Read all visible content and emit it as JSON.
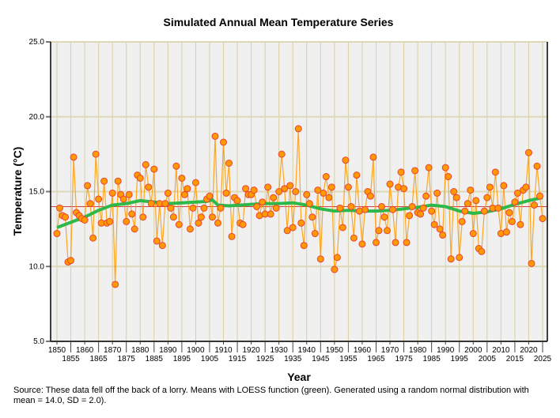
{
  "chart_data": {
    "type": "line",
    "title": "Simulated Annual Mean Temperature Series",
    "xlabel": "Year",
    "ylabel": "Temperature (°C)",
    "xlim": [
      1848,
      2027
    ],
    "ylim": [
      5,
      25
    ],
    "yticks": [
      "5.0",
      "10.0",
      "15.0",
      "20.0",
      "25.0"
    ],
    "ytick_values": [
      5,
      10,
      15,
      20,
      25
    ],
    "xticks": [
      1850,
      1855,
      1860,
      1865,
      1870,
      1875,
      1880,
      1885,
      1890,
      1895,
      1900,
      1905,
      1910,
      1915,
      1920,
      1925,
      1930,
      1935,
      1940,
      1945,
      1950,
      1955,
      1960,
      1965,
      1970,
      1975,
      1980,
      1985,
      1990,
      1995,
      2000,
      2005,
      2010,
      2015,
      2020,
      2025
    ],
    "grid": true,
    "mean": 14.0,
    "start_year": 1850,
    "series": [
      {
        "name": "Annual mean temperature",
        "color": "#ff9900",
        "marker_edge": "#e8433a",
        "values": [
          12.2,
          13.9,
          13.4,
          13.3,
          10.3,
          10.4,
          17.3,
          13.6,
          13.4,
          13.2,
          13.1,
          15.4,
          14.2,
          11.9,
          17.5,
          14.5,
          12.9,
          15.7,
          12.9,
          13.0,
          14.9,
          8.8,
          15.7,
          14.8,
          14.5,
          13.0,
          14.8,
          13.5,
          12.5,
          16.1,
          15.9,
          13.3,
          16.8,
          15.3,
          14.2,
          16.5,
          11.7,
          14.2,
          11.4,
          14.2,
          14.9,
          13.9,
          13.3,
          16.7,
          12.8,
          15.9,
          14.8,
          15.2,
          12.5,
          13.9,
          15.6,
          12.9,
          13.3,
          13.9,
          14.5,
          14.7,
          13.3,
          18.7,
          12.9,
          13.9,
          18.3,
          14.9,
          16.9,
          12.0,
          14.6,
          14.4,
          12.9,
          12.8,
          15.2,
          14.8,
          14.8,
          15.1,
          14.0,
          13.4,
          14.3,
          13.5,
          15.3,
          13.5,
          14.6,
          13.9,
          15.0,
          17.5,
          15.2,
          12.4,
          15.4,
          12.6,
          15.0,
          19.2,
          12.9,
          11.4,
          14.8,
          14.2,
          13.3,
          12.2,
          15.1,
          10.5,
          14.9,
          16.0,
          14.6,
          15.3,
          9.8,
          10.6,
          13.9,
          12.6,
          17.1,
          15.3,
          14.0,
          11.9,
          16.1,
          13.7,
          11.5,
          13.8,
          15.0,
          14.7,
          17.3,
          11.6,
          12.4,
          14.0,
          13.3,
          12.4,
          15.5,
          13.8,
          11.6,
          15.3,
          16.3,
          15.2,
          11.6,
          13.4,
          14.0,
          16.4,
          13.6,
          13.5,
          13.9,
          14.7,
          16.6,
          13.7,
          12.8,
          14.9,
          12.5,
          12.1,
          16.6,
          16.0,
          10.5,
          15.0,
          14.6,
          10.6,
          13.0,
          13.7,
          14.2,
          15.1,
          12.2,
          14.4,
          11.2,
          11.0,
          13.7,
          14.6,
          15.3,
          13.9,
          16.3,
          13.9,
          12.2,
          15.4,
          12.3,
          13.6,
          13.0,
          14.3,
          14.9,
          12.8,
          15.1,
          15.3,
          17.6,
          10.2,
          14.1,
          16.7,
          14.7,
          13.2
        ]
      },
      {
        "name": "LOESS",
        "color": "#2db84a",
        "x": [
          1850,
          1855,
          1860,
          1865,
          1870,
          1875,
          1880,
          1885,
          1890,
          1895,
          1900,
          1904,
          1906,
          1908,
          1912,
          1920,
          1925,
          1930,
          1935,
          1940,
          1945,
          1950,
          1955,
          1960,
          1965,
          1970,
          1975,
          1980,
          1985,
          1990,
          1995,
          2000,
          2005,
          2010,
          2015,
          2020,
          2025
        ],
        "values": [
          12.6,
          12.95,
          13.3,
          13.75,
          14.1,
          14.2,
          14.4,
          14.3,
          14.2,
          14.25,
          14.3,
          14.35,
          14.45,
          14.1,
          14.05,
          14.15,
          14.2,
          14.2,
          14.25,
          14.1,
          13.85,
          13.7,
          13.75,
          13.7,
          13.7,
          13.75,
          13.85,
          13.95,
          14.1,
          14.0,
          13.7,
          13.55,
          13.65,
          13.85,
          14.15,
          14.4,
          14.6
        ]
      }
    ],
    "legend": "none"
  },
  "source": "Source: These data fell off the back of a lorry. Means with LOESS function (green). Generated using a random normal distribution with mean = 14.0, SD = 2.0)."
}
